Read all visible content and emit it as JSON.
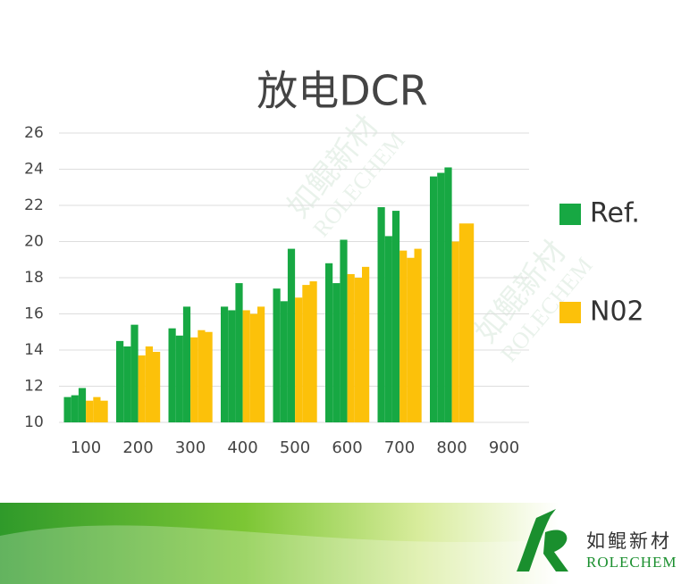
{
  "chart_data": {
    "type": "grouped-bar",
    "title": "放电DCR",
    "categories": [
      "100",
      "200",
      "300",
      "400",
      "500",
      "600",
      "700",
      "800",
      "900"
    ],
    "series": [
      {
        "name": "Ref.",
        "color": "#17a843",
        "values": [
          [
            11.4,
            11.5,
            11.9
          ],
          [
            14.5,
            14.2,
            15.4
          ],
          [
            15.2,
            14.8,
            16.4
          ],
          [
            16.4,
            16.2,
            17.7
          ],
          [
            17.4,
            16.7,
            19.6
          ],
          [
            18.8,
            17.7,
            20.1
          ],
          [
            21.9,
            20.3,
            21.7
          ],
          [
            23.6,
            23.8,
            24.1
          ],
          null
        ]
      },
      {
        "name": "N02",
        "color": "#fcc10a",
        "values": [
          [
            11.2,
            11.4,
            11.2
          ],
          [
            13.7,
            14.2,
            13.9
          ],
          [
            14.7,
            15.1,
            15.0
          ],
          [
            16.2,
            16.0,
            16.4
          ],
          [
            16.9,
            17.6,
            17.8
          ],
          [
            18.2,
            18.0,
            18.6
          ],
          [
            19.5,
            19.1,
            19.6
          ],
          [
            20.0,
            21.0,
            21.0
          ],
          null
        ]
      }
    ],
    "ylim": [
      10,
      26
    ],
    "yticks": [
      10,
      12,
      14,
      16,
      18,
      20,
      22,
      24,
      26
    ],
    "grid": true,
    "legend": "right"
  },
  "brand": {
    "name": "如鲲新材",
    "en": "ROLECHEM"
  }
}
